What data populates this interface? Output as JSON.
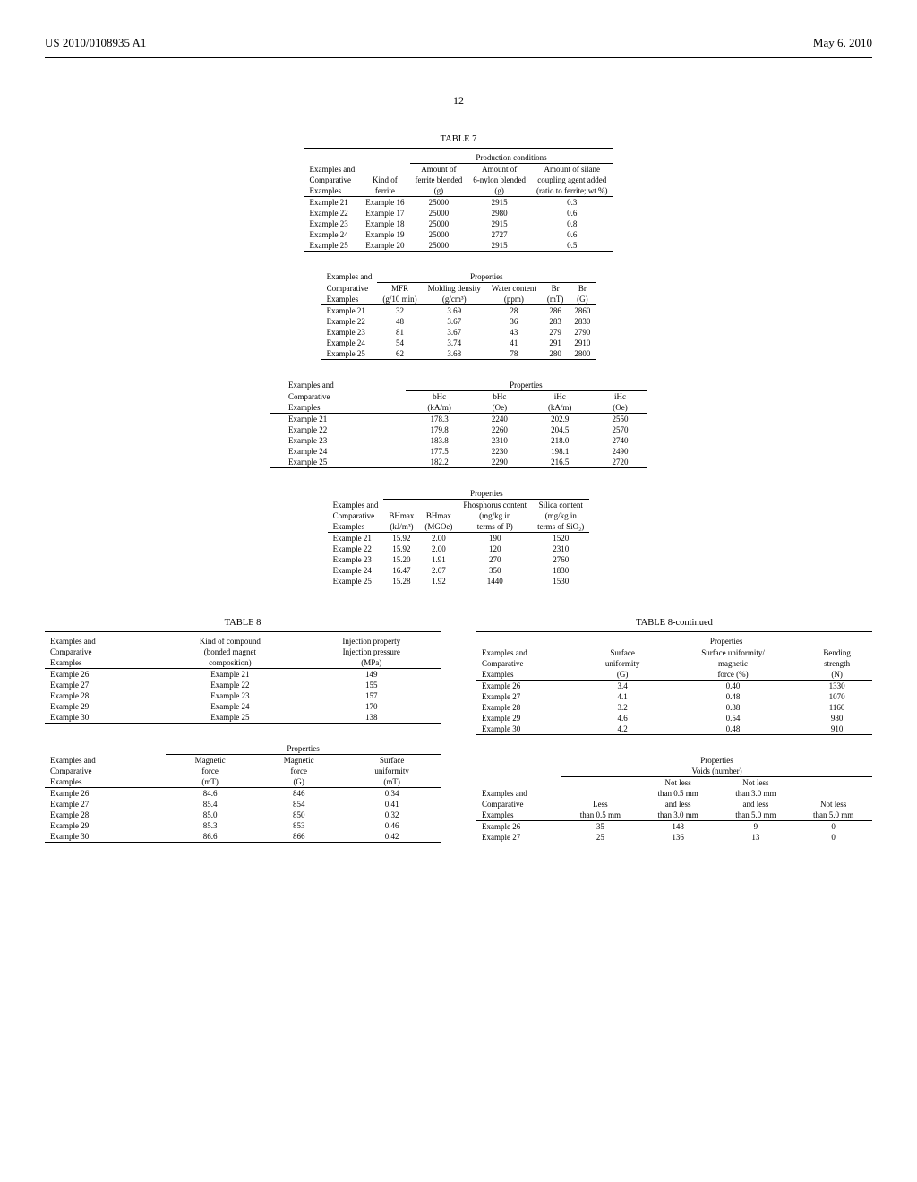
{
  "header": {
    "left": "US 2010/0108935 A1",
    "right": "May 6, 2010"
  },
  "page_number": "12",
  "table7": {
    "title": "TABLE 7",
    "section1": {
      "group_header": "Production conditions",
      "headers1": [
        "Examples and",
        "",
        "Amount of",
        "Amount of",
        "Amount of silane"
      ],
      "headers2": [
        "Comparative",
        "Kind of",
        "ferrite blended",
        "6-nylon blended",
        "coupling agent added"
      ],
      "headers3": [
        "Examples",
        "ferrite",
        "(g)",
        "(g)",
        "(ratio to ferrite; wt %)"
      ],
      "rows": [
        [
          "Example 21",
          "Example 16",
          "25000",
          "2915",
          "0.3"
        ],
        [
          "Example 22",
          "Example 17",
          "25000",
          "2980",
          "0.6"
        ],
        [
          "Example 23",
          "Example 18",
          "25000",
          "2915",
          "0.8"
        ],
        [
          "Example 24",
          "Example 19",
          "25000",
          "2727",
          "0.6"
        ],
        [
          "Example 25",
          "Example 20",
          "25000",
          "2915",
          "0.5"
        ]
      ]
    },
    "section2": {
      "group_header": "Properties",
      "lead": "Examples and",
      "headers1": [
        "Comparative",
        "MFR",
        "Molding density",
        "Water content",
        "Br",
        "Br"
      ],
      "headers2": [
        "Examples",
        "(g/10 min)",
        "(g/cm³)",
        "(ppm)",
        "(mT)",
        "(G)"
      ],
      "rows": [
        [
          "Example 21",
          "32",
          "3.69",
          "28",
          "286",
          "2860"
        ],
        [
          "Example 22",
          "48",
          "3.67",
          "36",
          "283",
          "2830"
        ],
        [
          "Example 23",
          "81",
          "3.67",
          "43",
          "279",
          "2790"
        ],
        [
          "Example 24",
          "54",
          "3.74",
          "41",
          "291",
          "2910"
        ],
        [
          "Example 25",
          "62",
          "3.68",
          "78",
          "280",
          "2800"
        ]
      ]
    },
    "section3": {
      "group_header": "Properties",
      "lead": "Examples and",
      "headers1": [
        "Comparative",
        "bHc",
        "bHc",
        "iHc",
        "iHc"
      ],
      "headers2": [
        "Examples",
        "(kA/m)",
        "(Oe)",
        "(kA/m)",
        "(Oe)"
      ],
      "rows": [
        [
          "Example 21",
          "178.3",
          "2240",
          "202.9",
          "2550"
        ],
        [
          "Example 22",
          "179.8",
          "2260",
          "204.5",
          "2570"
        ],
        [
          "Example 23",
          "183.8",
          "2310",
          "218.0",
          "2740"
        ],
        [
          "Example 24",
          "177.5",
          "2230",
          "198.1",
          "2490"
        ],
        [
          "Example 25",
          "182.2",
          "2290",
          "216.5",
          "2720"
        ]
      ]
    },
    "section4": {
      "group_header": "Properties",
      "headers1": [
        "Examples and",
        "",
        "",
        "Phosphorus content",
        "Silica content"
      ],
      "headers2": [
        "Comparative",
        "BHmax",
        "BHmax",
        "(mg/kg in",
        "(mg/kg in"
      ],
      "headers3": [
        "Examples",
        "(kJ/m³)",
        "(MGOe)",
        "terms of P)",
        "terms of SiO₂)"
      ],
      "rows": [
        [
          "Example 21",
          "15.92",
          "2.00",
          "190",
          "1520"
        ],
        [
          "Example 22",
          "15.92",
          "2.00",
          "120",
          "2310"
        ],
        [
          "Example 23",
          "15.20",
          "1.91",
          "270",
          "2760"
        ],
        [
          "Example 24",
          "16.47",
          "2.07",
          "350",
          "1830"
        ],
        [
          "Example 25",
          "15.28",
          "1.92",
          "1440",
          "1530"
        ]
      ]
    }
  },
  "table8": {
    "title": "TABLE 8",
    "title_cont": "TABLE 8-continued",
    "left": {
      "section1": {
        "headers1": [
          "Examples and",
          "Kind of compound",
          "Injection property"
        ],
        "headers2": [
          "Comparative",
          "(bonded magnet",
          "Injection pressure"
        ],
        "headers3": [
          "Examples",
          "composition)",
          "(MPa)"
        ],
        "rows": [
          [
            "Example 26",
            "Example 21",
            "149"
          ],
          [
            "Example 27",
            "Example 22",
            "155"
          ],
          [
            "Example 28",
            "Example 23",
            "157"
          ],
          [
            "Example 29",
            "Example 24",
            "170"
          ],
          [
            "Example 30",
            "Example 25",
            "138"
          ]
        ]
      },
      "section2": {
        "group_header": "Properties",
        "headers1": [
          "Examples and",
          "Magnetic",
          "Magnetic",
          "Surface"
        ],
        "headers2": [
          "Comparative",
          "force",
          "force",
          "uniformity"
        ],
        "headers3": [
          "Examples",
          "(mT)",
          "(G)",
          "(mT)"
        ],
        "rows": [
          [
            "Example 26",
            "84.6",
            "846",
            "0.34"
          ],
          [
            "Example 27",
            "85.4",
            "854",
            "0.41"
          ],
          [
            "Example 28",
            "85.0",
            "850",
            "0.32"
          ],
          [
            "Example 29",
            "85.3",
            "853",
            "0.46"
          ],
          [
            "Example 30",
            "86.6",
            "866",
            "0.42"
          ]
        ]
      }
    },
    "right": {
      "section1": {
        "group_header": "Properties",
        "headers1": [
          "Examples and",
          "Surface",
          "Surface uniformity/",
          "Bending"
        ],
        "headers2": [
          "Comparative",
          "uniformity",
          "magnetic",
          "strength"
        ],
        "headers3": [
          "Examples",
          "(G)",
          "force (%)",
          "(N)"
        ],
        "rows": [
          [
            "Example 26",
            "3.4",
            "0.40",
            "1330"
          ],
          [
            "Example 27",
            "4.1",
            "0.48",
            "1070"
          ],
          [
            "Example 28",
            "3.2",
            "0.38",
            "1160"
          ],
          [
            "Example 29",
            "4.6",
            "0.54",
            "980"
          ],
          [
            "Example 30",
            "4.2",
            "0.48",
            "910"
          ]
        ]
      },
      "section2": {
        "group_header1": "Properties",
        "group_header2": "Voids (number)",
        "headers1": [
          "",
          "",
          "Not less",
          "Not less",
          ""
        ],
        "headers2": [
          "Examples and",
          "",
          "than 0.5 mm",
          "than 3.0 mm",
          ""
        ],
        "headers3": [
          "Comparative",
          "Less",
          "and less",
          "and less",
          "Not less"
        ],
        "headers4": [
          "Examples",
          "than 0.5 mm",
          "than 3.0 mm",
          "than 5.0 mm",
          "than 5.0 mm"
        ],
        "rows": [
          [
            "Example 26",
            "35",
            "148",
            "9",
            "0"
          ],
          [
            "Example 27",
            "25",
            "136",
            "13",
            "0"
          ]
        ]
      }
    }
  }
}
